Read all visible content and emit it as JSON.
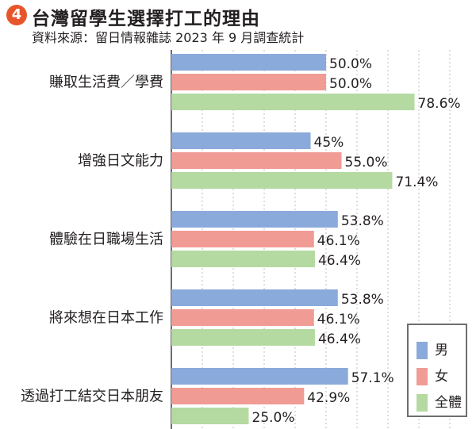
{
  "header": {
    "badge_number": "4",
    "title": "台灣留學生選擇打工的理由",
    "source": "資料來源：留日情報雜誌 2023 年 9 月調查統計"
  },
  "chart_data": {
    "type": "bar",
    "orientation": "horizontal",
    "categories": [
      "賺取生活費／學費",
      "增強日文能力",
      "體驗在日職場生活",
      "將來想在日本工作",
      "透過打工結交日本朋友"
    ],
    "series": [
      {
        "name": "男",
        "color": "#8aaadb",
        "values": [
          50.0,
          45,
          53.8,
          53.8,
          57.1
        ],
        "labels": [
          "50.0%",
          "45%",
          "53.8%",
          "53.8%",
          "57.1%"
        ]
      },
      {
        "name": "女",
        "color": "#f19b95",
        "values": [
          50.0,
          55.0,
          46.1,
          46.1,
          42.9
        ],
        "labels": [
          "50.0%",
          "55.0%",
          "46.1%",
          "46.1%",
          "42.9%"
        ]
      },
      {
        "name": "全體",
        "color": "#b4daa2",
        "values": [
          78.6,
          71.4,
          46.4,
          46.4,
          25.0
        ],
        "labels": [
          "78.6%",
          "71.4%",
          "46.4%",
          "46.4%",
          "25.0%"
        ]
      }
    ],
    "xlim": [
      0,
      100
    ],
    "grid": true,
    "grid_style": "dotted vertical",
    "legend_position": "bottom-right",
    "legend": [
      "男",
      "女",
      "全體"
    ]
  }
}
